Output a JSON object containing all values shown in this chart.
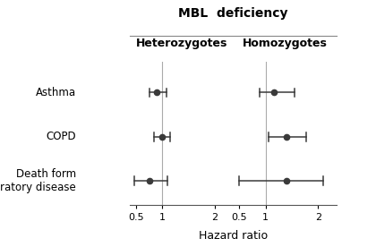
{
  "title": "MBL  deficiency",
  "xlabel": "Hazard ratio",
  "categories": [
    "Asthma",
    "COPD",
    "Death form\nrespiratory disease"
  ],
  "hetero_label": "Heterozygotes",
  "homo_label": "Homozygotes",
  "heterozygotes": {
    "values": [
      0.9,
      1.0,
      0.75
    ],
    "ci_low": [
      0.75,
      0.85,
      0.47
    ],
    "ci_high": [
      1.08,
      1.15,
      1.1
    ]
  },
  "homozygotes": {
    "values": [
      1.15,
      1.4,
      1.4
    ],
    "ci_low": [
      0.88,
      1.05,
      0.5
    ],
    "ci_high": [
      1.55,
      1.78,
      2.1
    ]
  },
  "xlim": [
    0.38,
    2.35
  ],
  "xticks": [
    0.5,
    1.0,
    2.0
  ],
  "xticklabels": [
    "0.5",
    "1",
    "2"
  ],
  "ref_line": 1.0,
  "dot_color": "#3a3a3a",
  "line_color": "#3a3a3a",
  "ref_line_color": "#aaaaaa",
  "spine_color": "#555555",
  "background_color": "#ffffff",
  "title_fontsize": 10,
  "header_fontsize": 9,
  "tick_fontsize": 8,
  "cat_fontsize": 8.5
}
